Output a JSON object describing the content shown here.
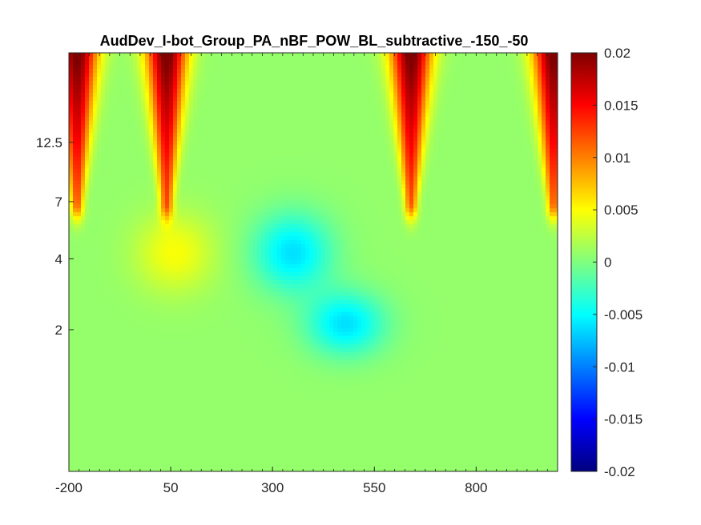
{
  "chart_data": {
    "type": "heatmap",
    "title": "AudDev_I-bot_Group_PA_nBF_POW_BL_subtractive_-150_-50",
    "xlabel": "",
    "ylabel": "",
    "x_ticks": [
      "-200",
      "50",
      "300",
      "550",
      "800"
    ],
    "x_tick_values": [
      -200,
      50,
      300,
      550,
      800
    ],
    "xlim": [
      -200,
      1000
    ],
    "y_ticks": [
      "2",
      "4",
      "7",
      "12.5"
    ],
    "y_tick_values": [
      2,
      4,
      7,
      12.5
    ],
    "ylim": [
      0.5,
      30
    ],
    "y_scale": "log",
    "colormap": "jet",
    "colorbar": {
      "ticks": [
        "-0.02",
        "-0.015",
        "-0.01",
        "-0.005",
        "0",
        "0.005",
        "0.01",
        "0.015",
        "0.02"
      ],
      "tick_values": [
        -0.02,
        -0.015,
        -0.01,
        -0.005,
        0,
        0.005,
        0.01,
        0.015,
        0.02
      ],
      "range": [
        -0.02,
        0.02
      ]
    },
    "features": [
      {
        "kind": "positive",
        "time": -180,
        "freq_range": [
          7,
          30
        ],
        "peak": 0.02
      },
      {
        "kind": "positive",
        "time": 40,
        "freq_range": [
          7,
          30
        ],
        "peak": 0.02
      },
      {
        "kind": "positive",
        "time": 640,
        "freq_range": [
          7,
          30
        ],
        "peak": 0.02
      },
      {
        "kind": "positive",
        "time": 990,
        "freq_range": [
          7,
          30
        ],
        "peak": 0.02
      },
      {
        "kind": "negative",
        "time": 350,
        "freq_range": [
          3,
          6
        ],
        "peak": -0.007
      },
      {
        "kind": "negative",
        "time": 480,
        "freq_range": [
          1.6,
          2.8
        ],
        "peak": -0.007
      },
      {
        "kind": "positive",
        "time": 60,
        "freq_range": [
          3,
          6
        ],
        "peak": 0.004
      }
    ]
  }
}
